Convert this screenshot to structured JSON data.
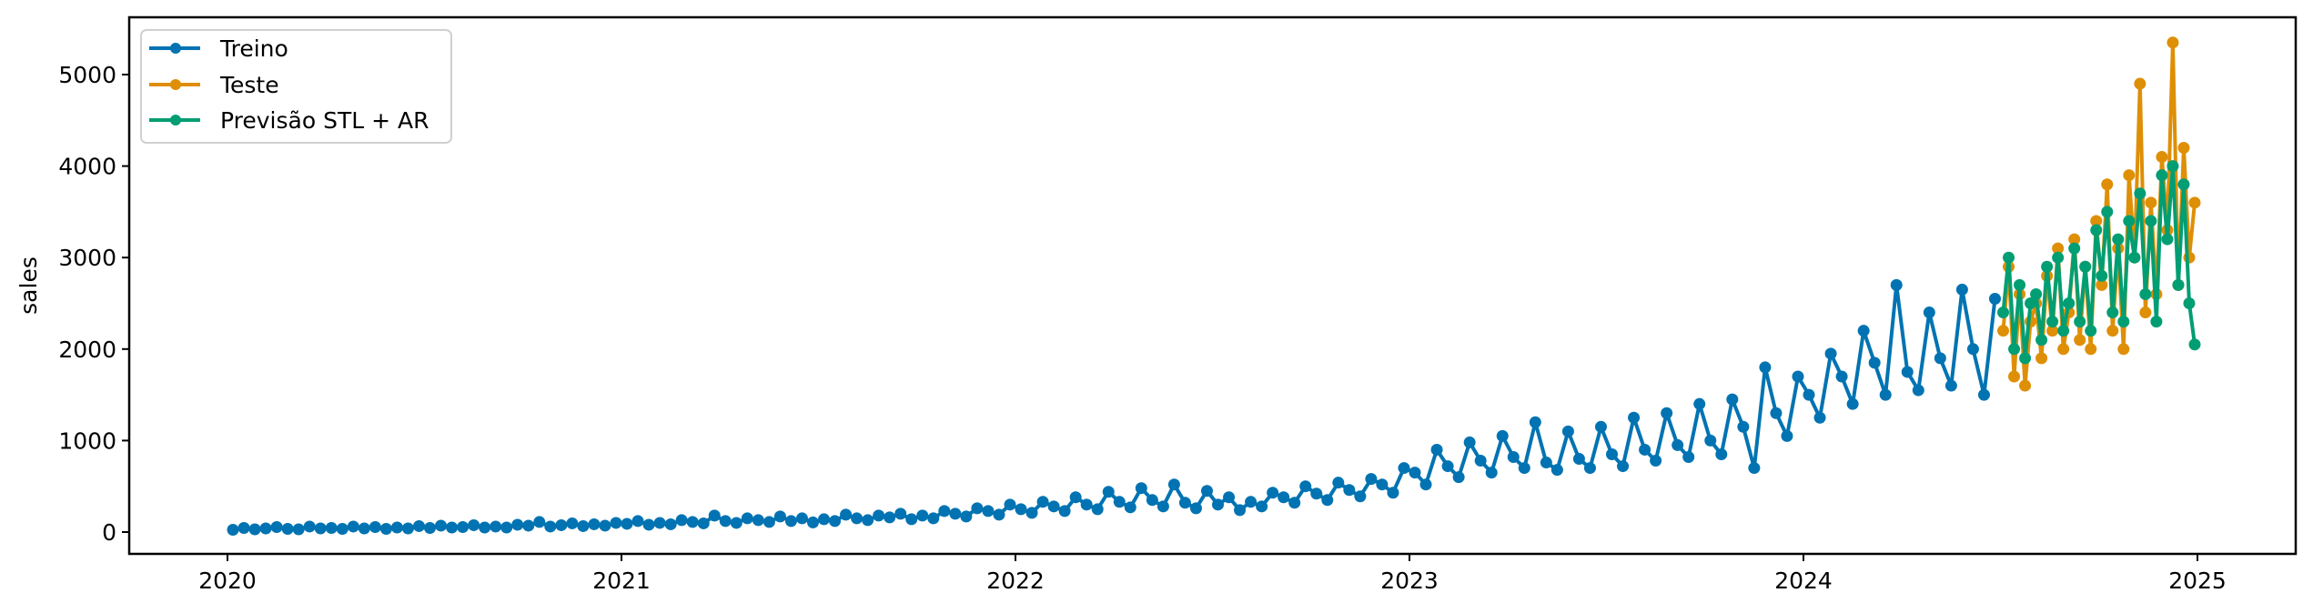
{
  "chart_data": {
    "type": "line",
    "title": "",
    "xlabel": "",
    "ylabel": "sales",
    "xlim": [
      "2019-10",
      "2025-04"
    ],
    "ylim": [
      -240,
      5630
    ],
    "x_ticks": [
      "2020",
      "2021",
      "2022",
      "2023",
      "2024",
      "2025"
    ],
    "y_ticks": [
      0,
      1000,
      2000,
      3000,
      4000,
      5000
    ],
    "grid": false,
    "legend_position": "top-left",
    "markers": true,
    "series": [
      {
        "name": "Treino",
        "color": "#0173b2",
        "points": [
          [
            "2020-01",
            [
              25,
              45,
              30
            ]
          ],
          [
            "2020-02",
            [
              40,
              55,
              35
            ]
          ],
          [
            "2020-03",
            [
              30,
              60,
              40
            ]
          ],
          [
            "2020-04",
            [
              45,
              35,
              60
            ]
          ],
          [
            "2020-05",
            [
              40,
              55,
              35
            ]
          ],
          [
            "2020-06",
            [
              50,
              40,
              65
            ]
          ],
          [
            "2020-07",
            [
              45,
              70,
              50
            ]
          ],
          [
            "2020-08",
            [
              55,
              75,
              50
            ]
          ],
          [
            "2020-09",
            [
              60,
              50,
              80
            ]
          ],
          [
            "2020-10",
            [
              70,
              110,
              60
            ]
          ],
          [
            "2020-11",
            [
              75,
              95,
              65
            ]
          ],
          [
            "2020-12",
            [
              85,
              70,
              100
            ]
          ],
          [
            "2021-01",
            [
              90,
              120,
              80
            ]
          ],
          [
            "2021-02",
            [
              100,
              85,
              130
            ]
          ],
          [
            "2021-03",
            [
              110,
              95,
              180
            ]
          ],
          [
            "2021-04",
            [
              120,
              100,
              150
            ]
          ],
          [
            "2021-05",
            [
              130,
              110,
              170
            ]
          ],
          [
            "2021-06",
            [
              120,
              150,
              105
            ]
          ],
          [
            "2021-07",
            [
              140,
              120,
              190
            ]
          ],
          [
            "2021-08",
            [
              150,
              130,
              180
            ]
          ],
          [
            "2021-09",
            [
              160,
              200,
              140
            ]
          ],
          [
            "2021-10",
            [
              180,
              150,
              230
            ]
          ],
          [
            "2021-11",
            [
              200,
              170,
              260
            ]
          ],
          [
            "2021-12",
            [
              230,
              190,
              300
            ]
          ],
          [
            "2022-01",
            [
              250,
              210,
              330
            ]
          ],
          [
            "2022-02",
            [
              280,
              230,
              380
            ]
          ],
          [
            "2022-03",
            [
              300,
              250,
              440
            ]
          ],
          [
            "2022-04",
            [
              330,
              270,
              480
            ]
          ],
          [
            "2022-05",
            [
              350,
              280,
              520
            ]
          ],
          [
            "2022-06",
            [
              320,
              260,
              450
            ]
          ],
          [
            "2022-07",
            [
              300,
              380,
              240
            ]
          ],
          [
            "2022-08",
            [
              330,
              280,
              430
            ]
          ],
          [
            "2022-09",
            [
              380,
              320,
              500
            ]
          ],
          [
            "2022-10",
            [
              420,
              350,
              540
            ]
          ],
          [
            "2022-11",
            [
              460,
              390,
              580
            ]
          ],
          [
            "2022-12",
            [
              520,
              430,
              700
            ]
          ],
          [
            "2023-01",
            [
              650,
              520,
              900
            ]
          ],
          [
            "2023-02",
            [
              720,
              600,
              980
            ]
          ],
          [
            "2023-03",
            [
              780,
              650,
              1050
            ]
          ],
          [
            "2023-04",
            [
              820,
              700,
              1200
            ]
          ],
          [
            "2023-05",
            [
              760,
              680,
              1100
            ]
          ],
          [
            "2023-06",
            [
              800,
              700,
              1150
            ]
          ],
          [
            "2023-07",
            [
              850,
              720,
              1250
            ]
          ],
          [
            "2023-08",
            [
              900,
              780,
              1300
            ]
          ],
          [
            "2023-09",
            [
              950,
              820,
              1400
            ]
          ],
          [
            "2023-10",
            [
              1000,
              850,
              1450
            ]
          ],
          [
            "2023-11",
            [
              1150,
              700,
              1800
            ]
          ],
          [
            "2023-12",
            [
              1300,
              1050,
              1700
            ]
          ],
          [
            "2024-01",
            [
              1500,
              1250,
              1950
            ]
          ],
          [
            "2024-02",
            [
              1700,
              1400,
              2200
            ]
          ],
          [
            "2024-03",
            [
              1850,
              1500,
              2700
            ]
          ],
          [
            "2024-04",
            [
              1750,
              1550,
              2400
            ]
          ],
          [
            "2024-05",
            [
              1900,
              1600,
              2650
            ]
          ],
          [
            "2024-06",
            [
              2000,
              1500,
              2550
            ]
          ]
        ]
      },
      {
        "name": "Teste",
        "color": "#de8f05",
        "points": [
          [
            "2024-07",
            [
              2200,
              2900,
              1700,
              2600,
              1600,
              2300
            ]
          ],
          [
            "2024-08",
            [
              2500,
              1900,
              2800,
              2200,
              3100,
              2000
            ]
          ],
          [
            "2024-09",
            [
              2400,
              3200,
              2100,
              2900,
              2000,
              3400
            ]
          ],
          [
            "2024-10",
            [
              2700,
              3800,
              2200,
              3100,
              2000,
              3900
            ]
          ],
          [
            "2024-11",
            [
              3000,
              4900,
              2400,
              3600,
              2600,
              4100
            ]
          ],
          [
            "2024-12",
            [
              3300,
              5350,
              2700,
              4200,
              3000,
              3600
            ]
          ]
        ]
      },
      {
        "name": "Previsão STL + AR",
        "color": "#029e73",
        "points": [
          [
            "2024-07",
            [
              2400,
              3000,
              2000,
              2700,
              1900,
              2500
            ]
          ],
          [
            "2024-08",
            [
              2600,
              2100,
              2900,
              2300,
              3000,
              2200
            ]
          ],
          [
            "2024-09",
            [
              2500,
              3100,
              2300,
              2900,
              2200,
              3300
            ]
          ],
          [
            "2024-10",
            [
              2800,
              3500,
              2400,
              3200,
              2300,
              3400
            ]
          ],
          [
            "2024-11",
            [
              3000,
              3700,
              2600,
              3400,
              2300,
              3900
            ]
          ],
          [
            "2024-12",
            [
              3200,
              4000,
              2700,
              3800,
              2500,
              2050
            ]
          ]
        ]
      }
    ]
  }
}
